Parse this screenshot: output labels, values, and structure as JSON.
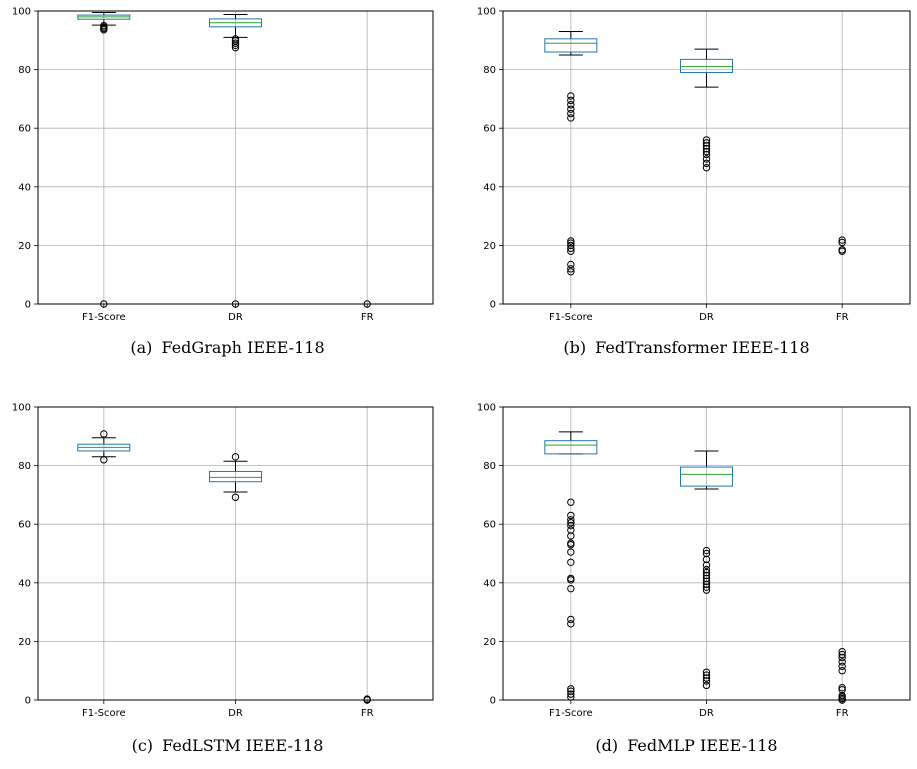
{
  "chart_data": [
    {
      "type": "box",
      "label": "(a)",
      "caption": "FedGraph IEEE-118",
      "categories": [
        "F1-Score",
        "DR",
        "FR"
      ],
      "ylim": [
        0,
        100
      ],
      "yticks": [
        0,
        20,
        40,
        60,
        80,
        100
      ],
      "grid": true,
      "boxes": [
        {
          "category": "F1-Score",
          "whisker_low": 95.2,
          "q1": 97.2,
          "median": 98.0,
          "q3": 98.6,
          "whisker_high": 99.5,
          "outliers": [
            0,
            93.6,
            94.0,
            94.5,
            95.0
          ]
        },
        {
          "category": "DR",
          "whisker_low": 91.0,
          "q1": 94.6,
          "median": 96.0,
          "q3": 97.3,
          "whisker_high": 98.8,
          "outliers": [
            0,
            87.5,
            88.3,
            89.0,
            89.8,
            90.5
          ]
        },
        {
          "category": "FR",
          "whisker_low": 0,
          "q1": 0,
          "median": 0,
          "q3": 0,
          "whisker_high": 0,
          "outliers": [
            0
          ]
        }
      ]
    },
    {
      "type": "box",
      "label": "(b)",
      "caption": "FedTransformer IEEE-118",
      "categories": [
        "F1-Score",
        "DR",
        "FR"
      ],
      "ylim": [
        0,
        100
      ],
      "yticks": [
        0,
        20,
        40,
        60,
        80,
        100
      ],
      "grid": true,
      "boxes": [
        {
          "category": "F1-Score",
          "whisker_low": 85.0,
          "q1": 86.0,
          "median": 89.0,
          "q3": 90.5,
          "whisker_high": 93.0,
          "outliers": [
            11.0,
            12.0,
            13.5,
            18.0,
            19.0,
            20.0,
            20.8,
            21.5,
            63.5,
            65.0,
            66.5,
            68.0,
            69.5,
            71.0
          ]
        },
        {
          "category": "DR",
          "whisker_low": 74.0,
          "q1": 79.0,
          "median": 81.0,
          "q3": 83.5,
          "whisker_high": 87.0,
          "outliers": [
            46.5,
            48.0,
            49.5,
            51.0,
            52.0,
            53.0,
            54.0,
            55.0,
            56.0
          ]
        },
        {
          "category": "FR",
          "whisker_low": 0,
          "q1": 0,
          "median": 0,
          "q3": 0,
          "whisker_high": 0,
          "outliers": [
            18.0,
            18.5,
            21.0,
            21.8
          ]
        }
      ]
    },
    {
      "type": "box",
      "label": "(c)",
      "caption": "FedLSTM IEEE-118",
      "categories": [
        "F1-Score",
        "DR",
        "FR"
      ],
      "ylim": [
        0,
        100
      ],
      "yticks": [
        0,
        20,
        40,
        60,
        80,
        100
      ],
      "grid": true,
      "boxes": [
        {
          "category": "F1-Score",
          "whisker_low": 83.0,
          "q1": 85.0,
          "median": 86.2,
          "q3": 87.3,
          "whisker_high": 89.5,
          "outliers": [
            82.0,
            90.8
          ]
        },
        {
          "category": "DR",
          "whisker_low": 71.0,
          "q1": 74.5,
          "median": 76.0,
          "q3": 78.0,
          "whisker_high": 81.5,
          "outliers": [
            69.2,
            83.0
          ]
        },
        {
          "category": "FR",
          "whisker_low": 0,
          "q1": 0,
          "median": 0,
          "q3": 0,
          "whisker_high": 0,
          "outliers": [
            0,
            0.3
          ]
        }
      ]
    },
    {
      "type": "box",
      "label": "(d)",
      "caption": "FedMLP IEEE-118",
      "categories": [
        "F1-Score",
        "DR",
        "FR"
      ],
      "ylim": [
        0,
        100
      ],
      "yticks": [
        0,
        20,
        40,
        60,
        80,
        100
      ],
      "grid": true,
      "boxes": [
        {
          "category": "F1-Score",
          "whisker_low": 84.0,
          "q1": 84.0,
          "median": 87.0,
          "q3": 88.5,
          "whisker_high": 91.5,
          "outliers": [
            1.0,
            2.0,
            3.0,
            3.8,
            26.0,
            27.5,
            38.0,
            41.0,
            41.5,
            47.0,
            50.5,
            53.0,
            53.5,
            56.0,
            58.0,
            59.5,
            60.5,
            61.5,
            63.0,
            67.5
          ]
        },
        {
          "category": "DR",
          "whisker_low": 72.0,
          "q1": 73.0,
          "median": 77.0,
          "q3": 79.5,
          "whisker_high": 85.0,
          "outliers": [
            5.0,
            6.5,
            7.5,
            8.5,
            9.5,
            37.5,
            38.5,
            39.5,
            40.5,
            41.5,
            42.5,
            43.5,
            44.5,
            46.0,
            48.0,
            50.0,
            51.0
          ]
        },
        {
          "category": "FR",
          "whisker_low": 0,
          "q1": 0,
          "median": 0,
          "q3": 0,
          "whisker_high": 0,
          "outliers": [
            0,
            0.5,
            1.0,
            1.5,
            3.5,
            4.2,
            10.0,
            11.5,
            13.0,
            14.5,
            15.5,
            16.5
          ]
        }
      ]
    }
  ],
  "colors": {
    "box": "#1f77b4",
    "median": "#2ca02c",
    "whisker": "#000000",
    "grid": "#b0b0b0",
    "outlier": "#000000"
  }
}
